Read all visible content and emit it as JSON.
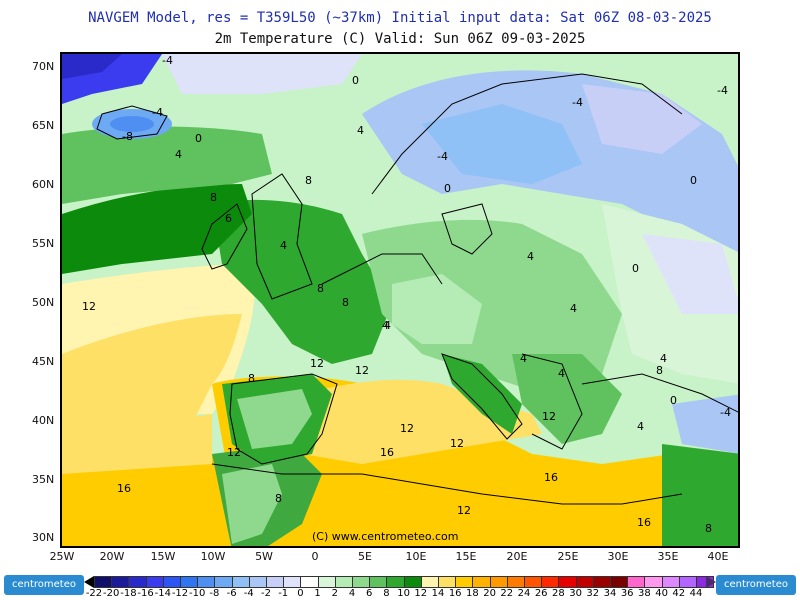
{
  "header": {
    "line1": "NAVGEM Model, res = T359L50 (~37km)   Initial input data: Sat 06Z 08-03-2025",
    "line2": "2m Temperature (C)  Valid: Sun 06Z 09-03-2025"
  },
  "axes": {
    "lat_labels": [
      "70N",
      "65N",
      "60N",
      "55N",
      "50N",
      "45N",
      "40N",
      "35N",
      "30N"
    ],
    "lon_labels": [
      "25W",
      "20W",
      "15W",
      "10W",
      "5W",
      "0",
      "5E",
      "10E",
      "15E",
      "20E",
      "25E",
      "30E",
      "35E",
      "40E"
    ]
  },
  "map": {
    "copyright": "(C) www.centrometeo.com",
    "contour_labels": [
      "-4",
      "0",
      "-4",
      "4",
      "-8",
      "0",
      "4",
      "8",
      "8",
      "6",
      "4",
      "8",
      "8",
      "12",
      "4",
      "12",
      "12",
      "16",
      "16",
      "12",
      "8",
      "12",
      "4",
      "-4",
      "0",
      "-4",
      "4",
      "0",
      "4",
      "-4",
      "0",
      "4",
      "4",
      "8",
      "4",
      "12",
      "-4",
      "0",
      "4",
      "16",
      "12",
      "16",
      "8",
      "8",
      "12"
    ]
  },
  "colorbar": {
    "labels": [
      "-22",
      "-20",
      "-18",
      "-16",
      "-14",
      "-12",
      "-10",
      "-8",
      "-6",
      "-4",
      "-2",
      "-1",
      "0",
      "1",
      "2",
      "4",
      "6",
      "8",
      "10",
      "12",
      "14",
      "16",
      "18",
      "20",
      "22",
      "24",
      "26",
      "28",
      "30",
      "32",
      "34",
      "36",
      "38",
      "40",
      "42",
      "44"
    ],
    "colors": [
      "#10106b",
      "#1a1a9a",
      "#2a2acb",
      "#3b3bef",
      "#2b55f5",
      "#2f74f0",
      "#4e8ff1",
      "#6ea9f3",
      "#8fc0f6",
      "#a9c6f5",
      "#c8cff7",
      "#dfe3f9",
      "#ffffff",
      "#d8f5d8",
      "#b5ecb5",
      "#8fd98f",
      "#5fc25f",
      "#2ea82e",
      "#0c8a0c",
      "#fff5b0",
      "#ffe066",
      "#ffcc00",
      "#ffb300",
      "#ff9900",
      "#ff7a00",
      "#ff5500",
      "#ff2a00",
      "#e60000",
      "#c00000",
      "#990000",
      "#7a0000",
      "#ff66cc",
      "#ff99ee",
      "#dd88ff",
      "#b266ff",
      "#8a2be2"
    ],
    "logo_text": "centrometeo"
  }
}
